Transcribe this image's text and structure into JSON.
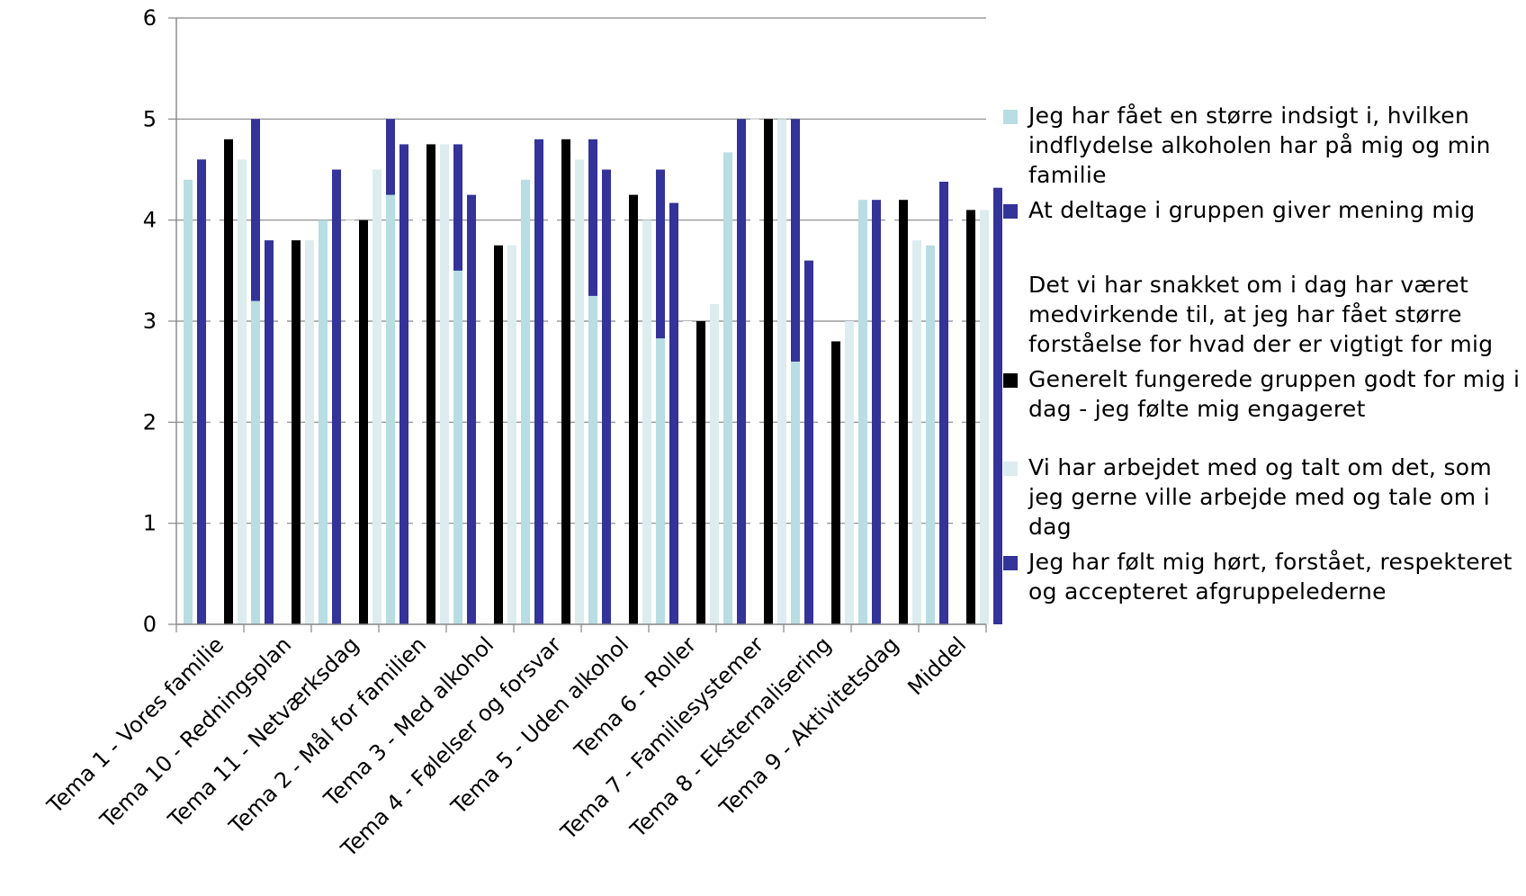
{
  "chart_data": {
    "type": "bar",
    "title": "",
    "xlabel": "",
    "ylabel": "",
    "ylim": [
      0,
      6
    ],
    "yticks": [
      0,
      1,
      2,
      3,
      4,
      5,
      6
    ],
    "grid": true,
    "legend_position": "right",
    "categories": [
      "Tema 1 - Vores familie",
      "Tema 10 - Redningsplan",
      "Tema 11 - Netværksdag",
      "Tema 2 - Mål for familien",
      "Tema 3 - Med alkohol",
      "Tema 4 - Følelser og forsvar",
      "Tema 5 - Uden alkohol",
      "Tema 6 - Roller",
      "Tema 7 - Familiesystemer",
      "Tema 8 - Eksternalisering",
      "Tema 9 - Aktivitetsdag",
      "Middel"
    ],
    "series": [
      {
        "name": "Jeg har fået en større indsigt i, hvilken indflydelse alkoholen har på mig og min familie",
        "color": "#b8dde3",
        "values": [
          4.4,
          3.2,
          4.0,
          4.25,
          3.5,
          4.4,
          3.25,
          2.83,
          4.67,
          2.6,
          4.2,
          3.75
        ]
      },
      {
        "name": "At deltage i gruppen giver mening mig",
        "color": "#333399",
        "values": [
          4.6,
          3.8,
          4.5,
          4.75,
          4.25,
          4.8,
          4.5,
          4.17,
          5.0,
          3.6,
          4.2,
          4.38
        ]
      },
      {
        "name": "Det vi har snakket om i dag har været medvirkende til, at jeg har fået større forståelse for hvad der er vigtigt for mig",
        "color": "#ffffff",
        "values": [
          4.8,
          3.8,
          4.0,
          4.75,
          3.75,
          4.8,
          4.25,
          3.0,
          5.0,
          2.8,
          4.2,
          4.1
        ]
      },
      {
        "name": "Generelt fungerede gruppen godt for mig i dag - jeg følte mig engageret",
        "color": "#000000",
        "values": [
          4.8,
          3.8,
          4.0,
          4.75,
          3.75,
          4.8,
          4.25,
          3.0,
          5.0,
          2.8,
          4.2,
          4.1
        ]
      },
      {
        "name": "Vi har arbejdet med og talt om det, som jeg gerne ville arbejde med og tale om i dag",
        "color": "#dcecef",
        "values": [
          4.6,
          3.8,
          4.5,
          4.75,
          3.75,
          4.6,
          4.0,
          3.17,
          5.0,
          3.0,
          3.8,
          4.1
        ]
      },
      {
        "name": "Jeg har følt mig hørt, forstået, respekteret og accepteret afgruppelederne",
        "color": "#333399",
        "values": [
          5.0,
          4.0,
          5.0,
          4.75,
          4.0,
          4.8,
          4.5,
          3.67,
          5.0,
          3.6,
          3.2,
          4.32
        ]
      }
    ]
  }
}
